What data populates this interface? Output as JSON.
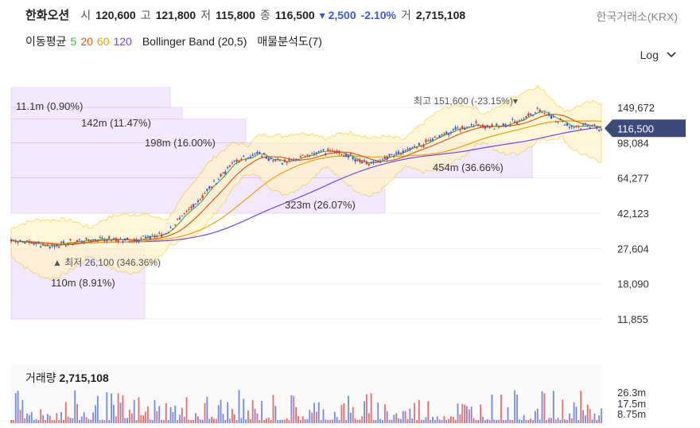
{
  "header": {
    "name": "한화오션",
    "open_label": "시",
    "open": "120,600",
    "high_label": "고",
    "high": "121,800",
    "low_label": "저",
    "low": "115,800",
    "close_label": "종",
    "close": "116,500",
    "change": "▾ 2,500",
    "change_pct": "-2.10%",
    "volume_label": "거",
    "volume": "2,715,108",
    "exchange": "한국거래소(KRX)"
  },
  "indicators": {
    "ma_label": "이동평균",
    "ma5": "5",
    "ma20": "20",
    "ma60": "60",
    "ma120": "120",
    "bollinger": "Bollinger Band (20,5)",
    "volume_profile": "매물분석도(7)"
  },
  "scale_toggle": {
    "label": "Log"
  },
  "colors": {
    "up": "#e03131",
    "down": "#3b5bdb",
    "ma5": "#4caf50",
    "ma20": "#e8590c",
    "ma60": "#f59f00",
    "ma120": "#7048e8",
    "band": "#f5c518",
    "profile": "#c9a0e8"
  },
  "chart_data": {
    "type": "candlestick",
    "y_scale": "log",
    "y_ticks": [
      "149,672",
      "98,084",
      "64,277",
      "42,123",
      "27,604",
      "18,090",
      "11,855"
    ],
    "y_tick_values": [
      149672,
      98084,
      64277,
      42123,
      27604,
      18090,
      11855
    ],
    "current_price_label": "116,500",
    "max_annotation": "최고 151,600 (-23.15%)▾",
    "min_annotation": "▲ 최저 26,100 (346.36%)",
    "volume_profile": [
      {
        "label": "11.1m (0.90%)",
        "high": 200000,
        "low": 149672
      },
      {
        "label": "142m (11.47%)",
        "high": 149672,
        "low": 130000
      },
      {
        "label": "198m (16.00%)",
        "high": 130000,
        "low": 98084
      },
      {
        "label": "454m (36.66%)",
        "high": 98084,
        "low": 64277
      },
      {
        "label": "323m (26.07%)",
        "high": 64277,
        "low": 42123
      },
      {
        "label": "110m (8.91%)",
        "high": 27604,
        "low": 11855
      }
    ],
    "volume": {
      "label": "거래량",
      "value": "2,715,108",
      "ticks": [
        "26.3m",
        "17.5m",
        "8.75m"
      ]
    }
  }
}
